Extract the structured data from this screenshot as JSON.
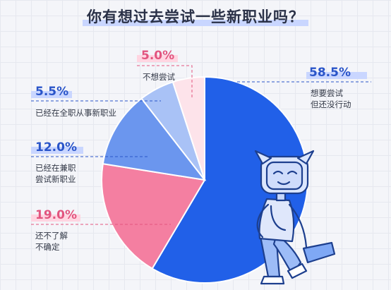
{
  "title": "你有想过去尝试一些新职业吗？",
  "chart_data": {
    "type": "pie",
    "title": "你有想过去尝试一些新职业吗？",
    "slices": [
      {
        "label": "想要尝试\n但还没行动",
        "value": 58.5,
        "display": "58.5%",
        "color": "#2160e8"
      },
      {
        "label": "还不了解\n不确定",
        "value": 19.0,
        "display": "19.0%",
        "color": "#f47fa1"
      },
      {
        "label": "已经在兼职\n尝试新职业",
        "value": 12.0,
        "display": "12.0%",
        "color": "#6b96ee"
      },
      {
        "label": "已经在全职从事新职业",
        "value": 5.5,
        "display": "5.5%",
        "color": "#a9c2f6"
      },
      {
        "label": "不想尝试",
        "value": 5.0,
        "display": "5.0%",
        "color": "#fde3ea"
      }
    ]
  },
  "colors": {
    "blue_label": "#2a55c9",
    "pink_label": "#e2557f",
    "highlight_blue": "#c9d6ff",
    "highlight_pink": "#ffd5e1"
  },
  "mascot": "cartoon-character-sitting-icon"
}
